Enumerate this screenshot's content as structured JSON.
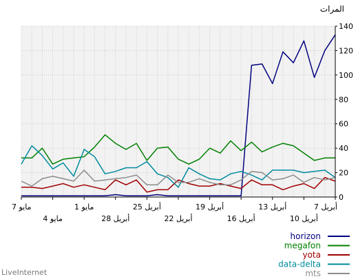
{
  "chart_data": {
    "type": "line",
    "ylabel": "المرات",
    "ylim": [
      0,
      140
    ],
    "yticks": [
      0,
      20,
      40,
      60,
      80,
      100,
      120,
      140
    ],
    "grid": true,
    "background_color": "#f2f2f2",
    "grid_color": "#c8c8c8",
    "legend_position": "bottom-right",
    "x_tick_labels": [
      {
        "day": 1,
        "row": 1,
        "label": "7 مايو"
      },
      {
        "day": 4,
        "row": 2,
        "label": "4 مايو"
      },
      {
        "day": 7,
        "row": 1,
        "label": "1 مايو"
      },
      {
        "day": 10,
        "row": 2,
        "label": "28 أبريل"
      },
      {
        "day": 13,
        "row": 1,
        "label": "25 أبريل"
      },
      {
        "day": 16,
        "row": 2,
        "label": "22 أبريل"
      },
      {
        "day": 19,
        "row": 1,
        "label": "19 أبريل"
      },
      {
        "day": 22,
        "row": 2,
        "label": "16 أبريل"
      },
      {
        "day": 25,
        "row": 1,
        "label": "13 أبريل"
      },
      {
        "day": 28,
        "row": 2,
        "label": "10 أبريل"
      },
      {
        "day": 31,
        "row": 1,
        "label": "7 أبريل"
      }
    ],
    "x": [
      1,
      2,
      3,
      4,
      5,
      6,
      7,
      8,
      9,
      10,
      11,
      12,
      13,
      14,
      15,
      16,
      17,
      18,
      19,
      20,
      21,
      22,
      23,
      24,
      25,
      26,
      27,
      28,
      29,
      30,
      31
    ],
    "series": [
      {
        "name": "horizon",
        "color": "#000080",
        "values": [
          1,
          1,
          1,
          1,
          1,
          1,
          1,
          1,
          1,
          2,
          1,
          1,
          1,
          2,
          1,
          1,
          1,
          1,
          1,
          1,
          1,
          1,
          108,
          109,
          93,
          119,
          110,
          128,
          98,
          120,
          133
        ]
      },
      {
        "name": "megafon",
        "color": "#008000",
        "values": [
          32,
          32,
          40,
          27,
          31,
          32,
          33,
          41,
          51,
          44,
          39,
          44,
          30,
          40,
          41,
          31,
          27,
          31,
          40,
          36,
          46,
          38,
          45,
          37,
          41,
          44,
          42,
          36,
          30,
          32,
          32
        ]
      },
      {
        "name": "yota",
        "color": "#a00000",
        "values": [
          8,
          8,
          7,
          9,
          11,
          8,
          10,
          8,
          6,
          14,
          10,
          14,
          4,
          6,
          6,
          14,
          11,
          9,
          9,
          11,
          9,
          7,
          14,
          10,
          10,
          6,
          9,
          11,
          7,
          16,
          13
        ]
      },
      {
        "name": "data-delta",
        "color": "#008b9e",
        "values": [
          27,
          42,
          34,
          23,
          28,
          17,
          39,
          33,
          19,
          21,
          24,
          24,
          29,
          19,
          16,
          8,
          24,
          19,
          15,
          14,
          19,
          21,
          18,
          14,
          22,
          22,
          22,
          20,
          21,
          22,
          16
        ]
      },
      {
        "name": "mts",
        "color": "#8c8c8c",
        "values": [
          13,
          9,
          15,
          17,
          15,
          13,
          22,
          13,
          14,
          15,
          16,
          18,
          10,
          10,
          18,
          12,
          12,
          15,
          12,
          10,
          10,
          14,
          21,
          20,
          14,
          15,
          18,
          12,
          16,
          14,
          16
        ]
      }
    ]
  },
  "watermark": "LiveInternet"
}
